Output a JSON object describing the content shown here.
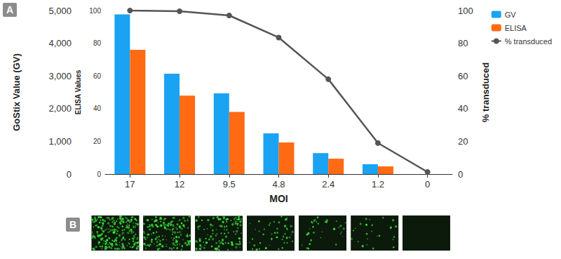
{
  "chart_data": {
    "type": "bar",
    "annotations": [
      "A",
      "B"
    ],
    "x_label": "MOI",
    "y_label": "GoStix Value (GV)",
    "y2_label": "ELISA Values",
    "y3_label": "% transduced",
    "categories": [
      "17",
      "12",
      "9.5",
      "4.8",
      "2.4",
      "1.2",
      "0"
    ],
    "ylim": [
      0,
      5000
    ],
    "yticks": [
      0,
      {
        "value": 1000,
        "label": "1,000"
      },
      {
        "value": 2000,
        "label": "2,000"
      },
      {
        "value": 3000,
        "label": "3,000"
      },
      {
        "value": 4000,
        "label": "4,000"
      },
      {
        "value": 5000,
        "label": "5,000"
      }
    ],
    "y2lim": [
      0,
      100
    ],
    "y2ticks": [
      0,
      20,
      40,
      60,
      80,
      100
    ],
    "y3lim": [
      0,
      100
    ],
    "y3ticks": [
      0,
      20,
      40,
      60,
      80,
      100
    ],
    "series": [
      {
        "name": "GV",
        "type": "bar",
        "color": "#1aa3f2",
        "values": [
          4880,
          3070,
          2470,
          1245,
          640,
          300,
          0
        ]
      },
      {
        "name": "ELISA",
        "type": "bar",
        "color": "#ff6a13",
        "axis": "y2",
        "values": [
          76,
          48,
          38,
          19.3,
          9.4,
          4.7,
          0
        ]
      },
      {
        "name": "% transduced",
        "type": "line",
        "color": "#555555",
        "axis": "y3",
        "marker": "circle",
        "values": [
          100,
          99.6,
          97,
          83.5,
          58,
          19,
          1.3
        ]
      }
    ],
    "grid": false,
    "legend": "top-right"
  }
}
